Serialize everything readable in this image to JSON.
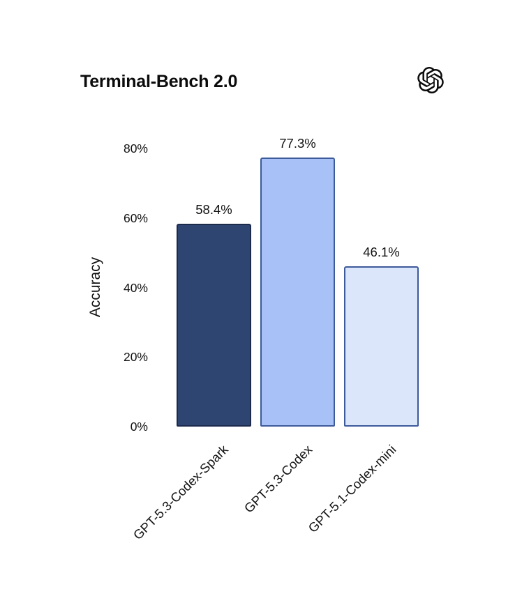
{
  "header": {
    "title": "Terminal-Bench 2.0",
    "logo_icon": "openai-logo-icon"
  },
  "chart_data": {
    "type": "bar",
    "title": "Terminal-Bench 2.0",
    "xlabel": "",
    "ylabel": "Accuracy",
    "categories": [
      "GPT-5.3-Codex-Spark",
      "GPT-5.3-Codex",
      "GPT-5.1-Codex-mini"
    ],
    "values": [
      58.4,
      77.3,
      46.1
    ],
    "value_labels": [
      "58.4%",
      "77.3%",
      "46.1%"
    ],
    "ylim": [
      0,
      80
    ],
    "yticks": [
      0,
      20,
      40,
      60,
      80
    ],
    "ytick_labels": [
      "0%",
      "20%",
      "40%",
      "60%",
      "80%"
    ],
    "grid": false,
    "legend": "none",
    "bar_styles": [
      {
        "fill": "#2e4471",
        "stroke": "#1c2a4c"
      },
      {
        "fill": "#a8c2f8",
        "stroke": "#3d5a9b"
      },
      {
        "fill": "#dbe6fb",
        "stroke": "#3d5a9b"
      }
    ]
  }
}
